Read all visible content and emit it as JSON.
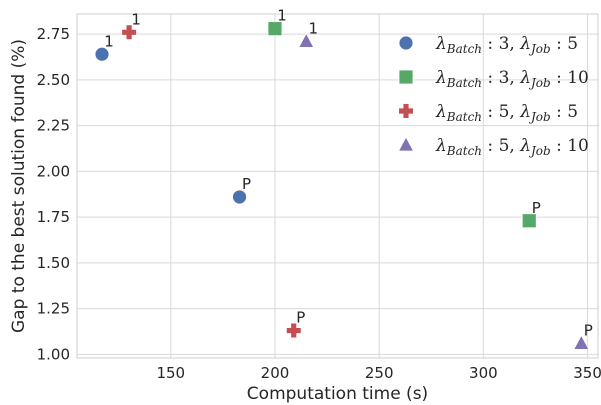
{
  "chart_data": {
    "type": "scatter",
    "xlabel": "Computation time (s)",
    "ylabel": "Gap to the best solution found (%)",
    "xlim": [
      105,
      355
    ],
    "ylim": [
      0.98,
      2.86
    ],
    "xticks": [
      150,
      200,
      250,
      300,
      350
    ],
    "yticks": [
      1.0,
      1.25,
      1.5,
      1.75,
      2.0,
      2.25,
      2.5,
      2.75
    ],
    "grid": true,
    "legend_position": "top-right",
    "series": [
      {
        "name": "λBatch : 3, λJob : 5",
        "legend": {
          "a": "3",
          "b": "5"
        },
        "marker": "circle",
        "color": "#4C72B0",
        "points": [
          {
            "x": 117,
            "y": 2.64,
            "label": "1"
          },
          {
            "x": 183,
            "y": 1.86,
            "label": "P"
          }
        ]
      },
      {
        "name": "λBatch : 3, λJob : 10",
        "legend": {
          "a": "3",
          "b": "10"
        },
        "marker": "square",
        "color": "#55A868",
        "points": [
          {
            "x": 200,
            "y": 2.78,
            "label": "1"
          },
          {
            "x": 322,
            "y": 1.73,
            "label": "P"
          }
        ]
      },
      {
        "name": "λBatch : 5, λJob : 5",
        "legend": {
          "a": "5",
          "b": "5"
        },
        "marker": "plus",
        "color": "#C44E52",
        "points": [
          {
            "x": 130,
            "y": 2.76,
            "label": "1"
          },
          {
            "x": 209,
            "y": 1.13,
            "label": "P"
          }
        ]
      },
      {
        "name": "λBatch : 5, λJob : 10",
        "legend": {
          "a": "5",
          "b": "10"
        },
        "marker": "triangle",
        "color": "#8172B2",
        "points": [
          {
            "x": 215,
            "y": 2.71,
            "label": "1"
          },
          {
            "x": 347,
            "y": 1.06,
            "label": "P"
          }
        ]
      }
    ]
  }
}
